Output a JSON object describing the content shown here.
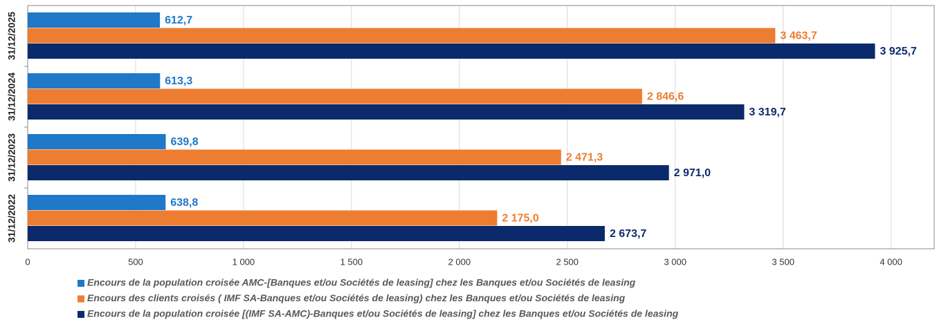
{
  "chart_data": {
    "type": "bar",
    "orientation": "horizontal",
    "categories": [
      "31/12/2025",
      "31/12/2024",
      "31/12/2023",
      "31/12/2022"
    ],
    "series": [
      {
        "name": "Encours de la population croisée AMC-[Banques et/ou Sociétés de leasing] chez les Banques et/ou Sociétés de leasing",
        "color": "#1f78c8",
        "values": [
          612.7,
          613.3,
          639.8,
          638.8
        ],
        "value_labels": [
          "612,7",
          "613,3",
          "639,8",
          "638,8"
        ]
      },
      {
        "name": "Encours des clients croisés  ( IMF SA-Banques et/ou Sociétés de leasing) chez les Banques et/ou Sociétés de leasing",
        "color": "#ed7d31",
        "values": [
          3463.7,
          2846.6,
          2471.3,
          2175.0
        ],
        "value_labels": [
          "3 463,7",
          "2 846,6",
          "2 471,3",
          "2 175,0"
        ]
      },
      {
        "name": "Encours de la population croisée [(IMF SA-AMC)-Banques et/ou Sociétés de leasing] chez les Banques et/ou Sociétés de leasing",
        "color": "#0b2a6b",
        "values": [
          3925.7,
          3319.7,
          2971.0,
          2673.7
        ],
        "value_labels": [
          "3 925,7",
          "3 319,7",
          "2 971,0",
          "2 673,7"
        ]
      }
    ],
    "xlim": [
      0,
      4200
    ],
    "xticks": [
      0,
      500,
      {
        "value": 1000,
        "label": "1 000"
      },
      {
        "value": 1500,
        "label": "1 500"
      },
      {
        "value": 2000,
        "label": "2 000"
      },
      {
        "value": 2500,
        "label": "2 500"
      },
      {
        "value": 3000,
        "label": "3 000"
      },
      {
        "value": 3500,
        "label": "3 500"
      },
      {
        "value": 4000,
        "label": "4 000"
      }
    ],
    "grid": true,
    "legend": "bottom"
  }
}
